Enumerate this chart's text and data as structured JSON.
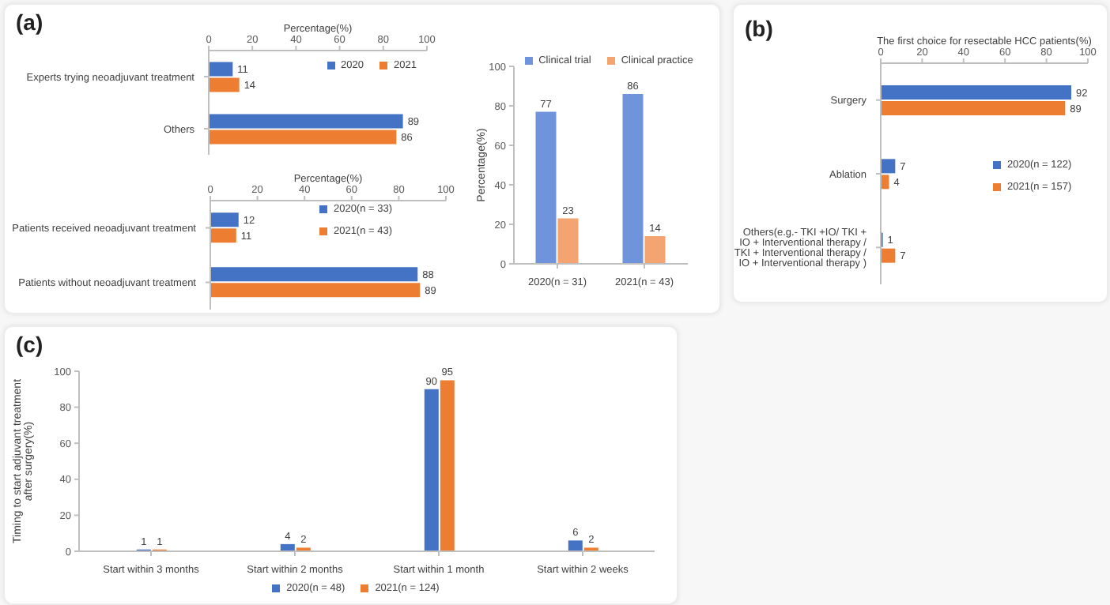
{
  "chart_data": [
    {
      "type": "bar",
      "title": "(a)",
      "orientation": "horizontal",
      "xlabel": "Percentage(%)",
      "categories": [
        "Experts trying neoadjuvant treatment",
        "Others"
      ],
      "xlim": [
        0,
        100
      ],
      "xticks": [
        0,
        20,
        40,
        60,
        80,
        100
      ],
      "data_labels": true,
      "legend": "top right",
      "grid": false,
      "series": [
        {
          "name": "2020",
          "color": "#4472c4",
          "values": [
            11,
            89
          ]
        },
        {
          "name": "2021",
          "color": "#ed7d31",
          "values": [
            14,
            86
          ]
        }
      ]
    },
    {
      "type": "bar",
      "orientation": "horizontal",
      "xlabel": "Percentage(%)",
      "categories": [
        "Patients received neoadjuvant treatment",
        "Patients without neoadjuvant treatment"
      ],
      "xlim": [
        0,
        100
      ],
      "xticks": [
        0,
        20,
        40,
        60,
        80,
        100
      ],
      "data_labels": true,
      "legend": "top right",
      "grid": false,
      "series": [
        {
          "name": "2020(n = 33)",
          "color": "#4472c4",
          "values": [
            12,
            88
          ]
        },
        {
          "name": "2021(n = 43)",
          "color": "#ed7d31",
          "values": [
            11,
            89
          ]
        }
      ]
    },
    {
      "type": "bar",
      "ylabel": "Percentage(%)",
      "categories": [
        "2020(n = 31)",
        "2021(n = 43)"
      ],
      "ylim": [
        0,
        100
      ],
      "yticks": [
        0,
        20,
        40,
        60,
        80,
        100
      ],
      "data_labels": true,
      "legend": "top",
      "grid": false,
      "series": [
        {
          "name": "Clinical trial",
          "color": "#6f94dc",
          "values": [
            77,
            86
          ]
        },
        {
          "name": "Clinical practice",
          "color": "#f4a470",
          "values": [
            23,
            14
          ]
        }
      ]
    },
    {
      "type": "bar",
      "title": "(b)",
      "orientation": "horizontal",
      "xlabel": "The first choice for resectable HCC patients(%)",
      "categories": [
        "Surgery",
        "Ablation",
        "Others(e.g.- TKI +IO/ TKI + IO + Interventional therapy / TKI + Interventional therapy / IO + Interventional therapy )"
      ],
      "xlim": [
        0,
        100
      ],
      "xticks": [
        0,
        20,
        40,
        60,
        80,
        100
      ],
      "data_labels": true,
      "legend": "right",
      "grid": false,
      "series": [
        {
          "name": "2020(n = 122)",
          "color": "#4472c4",
          "values": [
            92,
            7,
            1
          ]
        },
        {
          "name": "2021(n = 157)",
          "color": "#ed7d31",
          "values": [
            89,
            4,
            7
          ]
        }
      ]
    },
    {
      "type": "bar",
      "title": "(c)",
      "ylabel": "Timing to start adjuvant treatment after surgery(%)",
      "categories": [
        "Start within 3 months",
        "Start within 2 months",
        "Start within 1 month",
        "Start within 2 weeks"
      ],
      "ylim": [
        0,
        100
      ],
      "yticks": [
        0,
        20,
        40,
        60,
        80,
        100
      ],
      "data_labels": true,
      "legend": "bottom",
      "grid": false,
      "series": [
        {
          "name": "2020(n = 48)",
          "color": "#4472c4",
          "values": [
            1,
            4,
            90,
            6
          ]
        },
        {
          "name": "2021(n = 124)",
          "color": "#ed7d31",
          "values": [
            1,
            2,
            95,
            2
          ]
        }
      ]
    }
  ]
}
